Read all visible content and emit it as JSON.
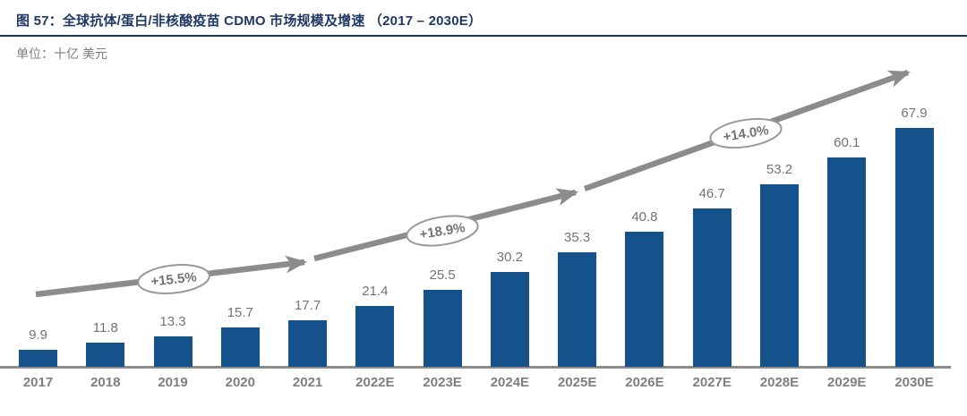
{
  "figure": {
    "title": "图 57：全球抗体/蛋白/非核酸疫苗 CDMO 市场规模及增速 （2017 – 2030E）",
    "unit_label": "单位：十亿 美元"
  },
  "chart_data": {
    "type": "bar",
    "title": "全球抗体/蛋白/非核酸疫苗 CDMO 市场规模及增速（2017 – 2030E）",
    "ylabel": "十亿美元",
    "xlabel": "",
    "categories": [
      "2017",
      "2018",
      "2019",
      "2020",
      "2021",
      "2022E",
      "2023E",
      "2024E",
      "2025E",
      "2026E",
      "2027E",
      "2028E",
      "2029E",
      "2030E"
    ],
    "values": [
      9.9,
      11.8,
      13.3,
      15.7,
      17.7,
      21.4,
      25.5,
      30.2,
      35.3,
      40.8,
      46.7,
      53.2,
      60.1,
      67.9
    ],
    "annotations": [
      {
        "label": "+15.5%"
      },
      {
        "label": "+18.9%"
      },
      {
        "label": "+14.0%"
      }
    ],
    "ylim": [
      5.5,
      70
    ],
    "grid": false,
    "legend": false,
    "colors": {
      "bar": "#15528B",
      "trend_arrow": "#8C8C8C",
      "annotation_border": "#999999",
      "annotation_fill": "#FFFFFF",
      "value_label": "#737373",
      "axis_label": "#7F7F7F",
      "axis_line": "#8C8C8C",
      "title": "#1F3864"
    }
  }
}
